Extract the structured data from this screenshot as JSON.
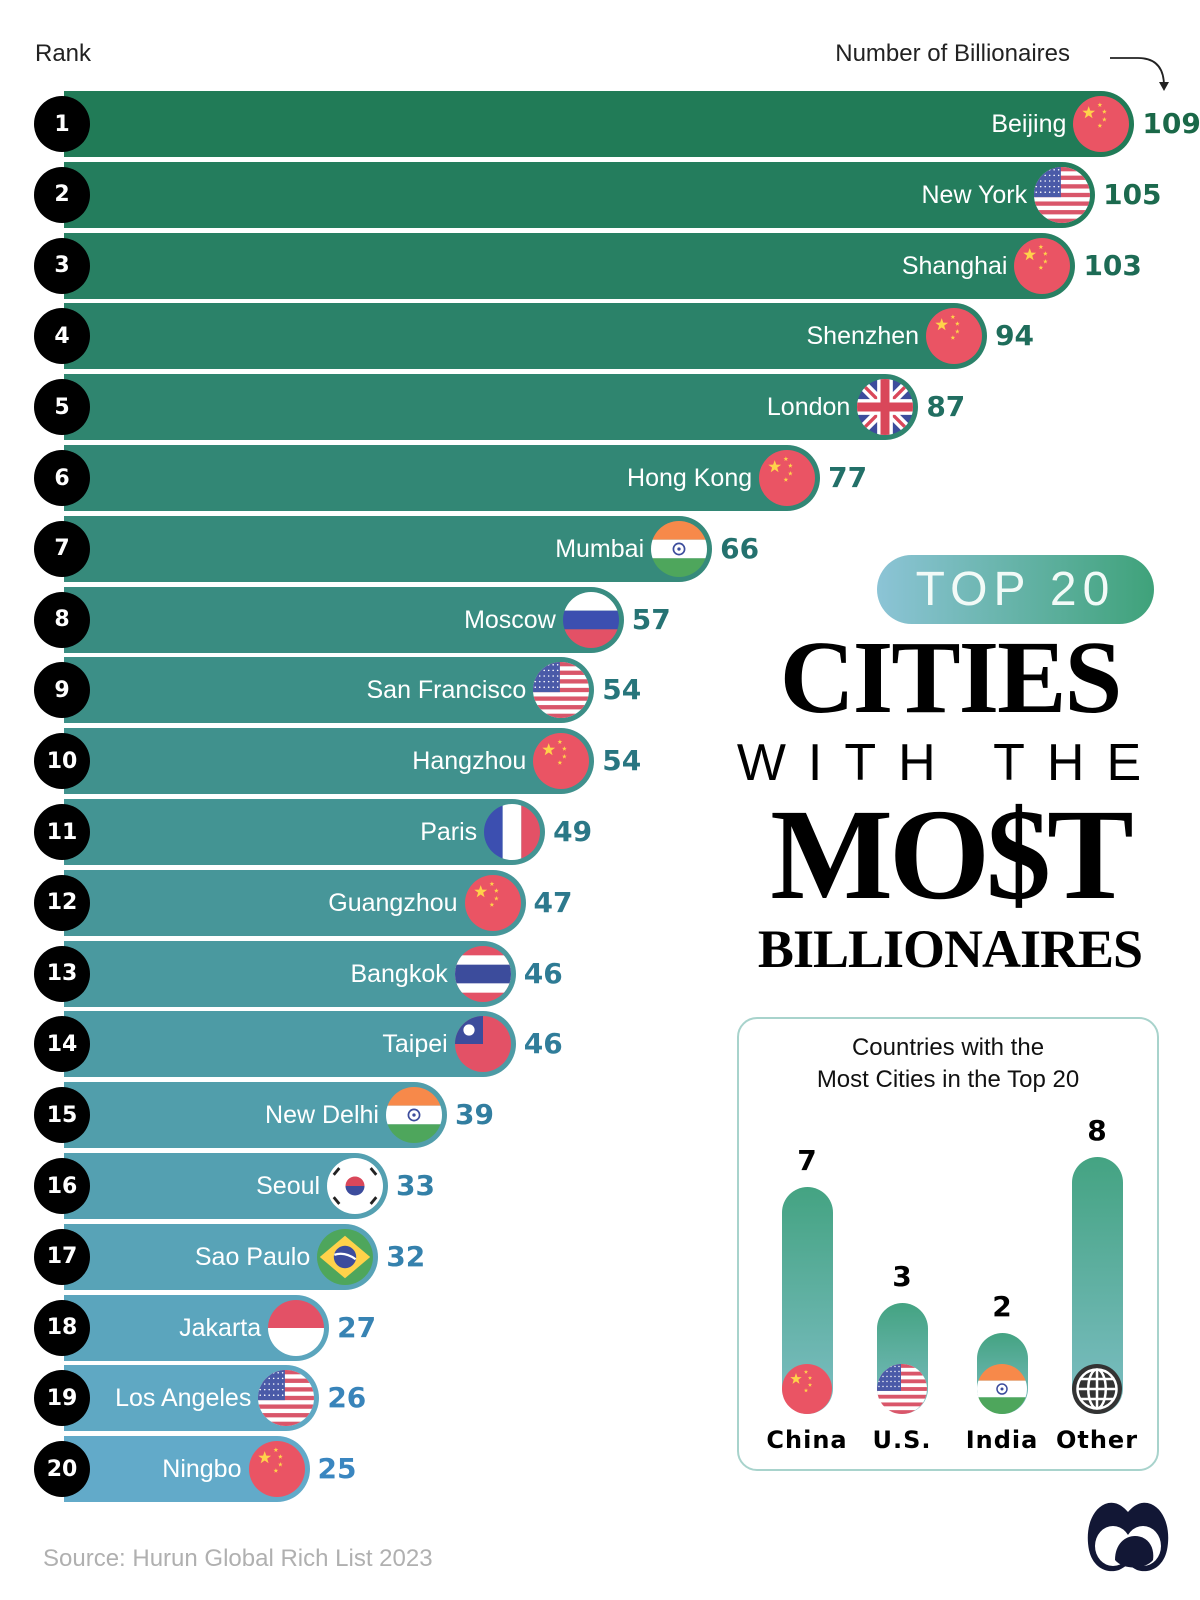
{
  "header": {
    "rank_label": "Rank",
    "value_label": "Number of Billionaires"
  },
  "title": {
    "pill": "TOP 20",
    "line1": "CITIES",
    "line2": "WITH THE",
    "line3": "MO$T",
    "line4": "BILLIONAIRES"
  },
  "colors": {
    "bar_top": "#217b57",
    "bar_bottom": "#62aac9",
    "value_top": "#1a6848",
    "value_bottom": "#3a86c0",
    "rank_circle": "#000000"
  },
  "chart_data": [
    {
      "type": "bar",
      "orientation": "horizontal",
      "xlabel": "Number of Billionaires",
      "ylabel": "Rank",
      "ranks": [
        1,
        2,
        3,
        4,
        5,
        6,
        7,
        8,
        9,
        10,
        11,
        12,
        13,
        14,
        15,
        16,
        17,
        18,
        19,
        20
      ],
      "categories": [
        "Beijing",
        "New York",
        "Shanghai",
        "Shenzhen",
        "London",
        "Hong Kong",
        "Mumbai",
        "Moscow",
        "San Francisco",
        "Hangzhou",
        "Paris",
        "Guangzhou",
        "Bangkok",
        "Taipei",
        "New Delhi",
        "Seoul",
        "Sao Paulo",
        "Jakarta",
        "Los Angeles",
        "Ningbo"
      ],
      "values": [
        109,
        105,
        103,
        94,
        87,
        77,
        66,
        57,
        54,
        54,
        49,
        47,
        46,
        46,
        39,
        33,
        32,
        27,
        26,
        25
      ],
      "flags": [
        "china-flag",
        "us-flag",
        "china-flag",
        "china-flag",
        "uk-flag",
        "china-flag",
        "india-flag",
        "russia-flag",
        "us-flag",
        "china-flag",
        "france-flag",
        "china-flag",
        "thailand-flag",
        "taiwan-flag",
        "india-flag",
        "korea-flag",
        "brazil-flag",
        "indonesia-flag",
        "us-flag",
        "china-flag"
      ]
    },
    {
      "type": "bar",
      "title": "Countries with the Most Cities in the Top 20",
      "title_lines": [
        "Countries with the",
        "Most Cities in the Top 20"
      ],
      "categories": [
        "China",
        "U.S.",
        "India",
        "Other"
      ],
      "values": [
        7,
        3,
        2,
        8
      ],
      "flags": [
        "china-flag",
        "us-flag",
        "india-flag",
        "globe"
      ]
    }
  ],
  "source": "Source: Hurun Global Rich List 2023"
}
